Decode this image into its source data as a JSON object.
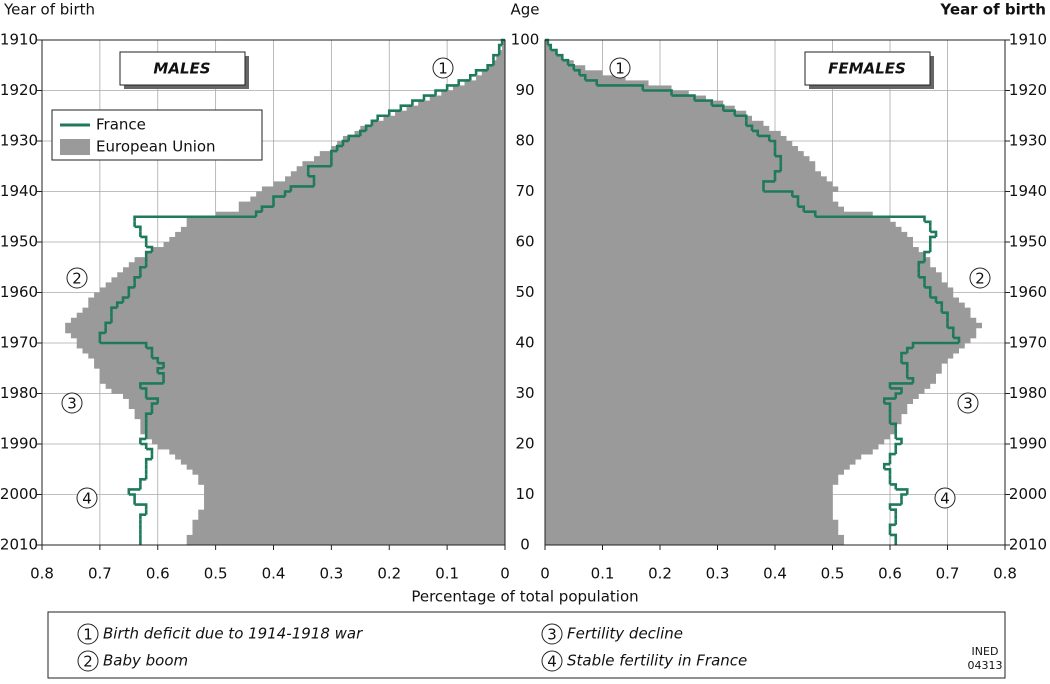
{
  "chart_data": {
    "type": "pyramid",
    "ylabel_left": "Year of birth",
    "ylabel_center": "Age",
    "ylabel_right": "Year of birth",
    "xlabel": "Percentage of total population",
    "panels": [
      "MALES",
      "FEMALES"
    ],
    "ages": [
      0,
      1,
      2,
      3,
      4,
      5,
      6,
      7,
      8,
      9,
      10,
      11,
      12,
      13,
      14,
      15,
      16,
      17,
      18,
      19,
      20,
      21,
      22,
      23,
      24,
      25,
      26,
      27,
      28,
      29,
      30,
      31,
      32,
      33,
      34,
      35,
      36,
      37,
      38,
      39,
      40,
      41,
      42,
      43,
      44,
      45,
      46,
      47,
      48,
      49,
      50,
      51,
      52,
      53,
      54,
      55,
      56,
      57,
      58,
      59,
      60,
      61,
      62,
      63,
      64,
      65,
      66,
      67,
      68,
      69,
      70,
      71,
      72,
      73,
      74,
      75,
      76,
      77,
      78,
      79,
      80,
      81,
      82,
      83,
      84,
      85,
      86,
      87,
      88,
      89,
      90,
      91,
      92,
      93,
      94,
      95,
      96,
      97,
      98,
      99,
      100
    ],
    "series": [
      {
        "name": "France",
        "color": "#1f7a5c",
        "males": [
          0.63,
          0.63,
          0.63,
          0.63,
          0.63,
          0.63,
          0.62,
          0.62,
          0.64,
          0.64,
          0.65,
          0.63,
          0.63,
          0.62,
          0.62,
          0.62,
          0.62,
          0.61,
          0.61,
          0.62,
          0.63,
          0.62,
          0.62,
          0.62,
          0.62,
          0.62,
          0.61,
          0.61,
          0.6,
          0.62,
          0.62,
          0.63,
          0.59,
          0.59,
          0.6,
          0.59,
          0.6,
          0.61,
          0.61,
          0.62,
          0.7,
          0.7,
          0.69,
          0.69,
          0.68,
          0.68,
          0.68,
          0.67,
          0.66,
          0.65,
          0.65,
          0.64,
          0.64,
          0.63,
          0.63,
          0.62,
          0.62,
          0.62,
          0.61,
          0.62,
          0.62,
          0.63,
          0.63,
          0.64,
          0.64,
          0.43,
          0.42,
          0.4,
          0.4,
          0.38,
          0.37,
          0.33,
          0.33,
          0.34,
          0.34,
          0.3,
          0.3,
          0.3,
          0.29,
          0.28,
          0.27,
          0.25,
          0.24,
          0.23,
          0.22,
          0.2,
          0.18,
          0.16,
          0.14,
          0.12,
          0.1,
          0.08,
          0.06,
          0.05,
          0.03,
          0.02,
          0.02,
          0.01,
          0.01,
          0.005,
          0
        ],
        "females": [
          0.61,
          0.61,
          0.6,
          0.6,
          0.61,
          0.61,
          0.61,
          0.6,
          0.62,
          0.62,
          0.63,
          0.61,
          0.6,
          0.6,
          0.6,
          0.59,
          0.6,
          0.6,
          0.61,
          0.61,
          0.62,
          0.61,
          0.61,
          0.61,
          0.6,
          0.6,
          0.6,
          0.6,
          0.59,
          0.61,
          0.62,
          0.6,
          0.64,
          0.63,
          0.63,
          0.63,
          0.62,
          0.62,
          0.63,
          0.64,
          0.72,
          0.71,
          0.71,
          0.7,
          0.7,
          0.7,
          0.69,
          0.69,
          0.68,
          0.67,
          0.67,
          0.66,
          0.66,
          0.65,
          0.65,
          0.65,
          0.66,
          0.66,
          0.67,
          0.67,
          0.67,
          0.68,
          0.67,
          0.67,
          0.66,
          0.47,
          0.45,
          0.44,
          0.44,
          0.43,
          0.38,
          0.38,
          0.4,
          0.4,
          0.41,
          0.41,
          0.41,
          0.4,
          0.4,
          0.4,
          0.39,
          0.37,
          0.36,
          0.35,
          0.35,
          0.33,
          0.31,
          0.29,
          0.26,
          0.22,
          0.17,
          0.09,
          0.07,
          0.06,
          0.05,
          0.04,
          0.03,
          0.02,
          0.01,
          0.005,
          0
        ]
      },
      {
        "name": "European Union",
        "color": "#9a9a9b",
        "males": [
          0.55,
          0.55,
          0.54,
          0.54,
          0.54,
          0.53,
          0.53,
          0.52,
          0.52,
          0.52,
          0.52,
          0.52,
          0.53,
          0.53,
          0.54,
          0.55,
          0.56,
          0.57,
          0.58,
          0.6,
          0.61,
          0.62,
          0.63,
          0.63,
          0.63,
          0.64,
          0.64,
          0.65,
          0.65,
          0.66,
          0.68,
          0.69,
          0.7,
          0.7,
          0.7,
          0.71,
          0.71,
          0.72,
          0.73,
          0.74,
          0.74,
          0.75,
          0.76,
          0.76,
          0.75,
          0.74,
          0.73,
          0.72,
          0.72,
          0.71,
          0.7,
          0.69,
          0.68,
          0.67,
          0.66,
          0.65,
          0.64,
          0.62,
          0.61,
          0.59,
          0.58,
          0.57,
          0.56,
          0.55,
          0.55,
          0.5,
          0.46,
          0.46,
          0.44,
          0.43,
          0.42,
          0.4,
          0.38,
          0.37,
          0.36,
          0.35,
          0.33,
          0.32,
          0.3,
          0.29,
          0.28,
          0.26,
          0.25,
          0.23,
          0.21,
          0.19,
          0.17,
          0.15,
          0.13,
          0.11,
          0.09,
          0.07,
          0.05,
          0.04,
          0.03,
          0.02,
          0.015,
          0.01,
          0.005,
          0.003,
          0
        ],
        "females": [
          0.52,
          0.52,
          0.51,
          0.51,
          0.51,
          0.5,
          0.5,
          0.5,
          0.5,
          0.5,
          0.5,
          0.5,
          0.51,
          0.51,
          0.52,
          0.53,
          0.54,
          0.55,
          0.57,
          0.58,
          0.59,
          0.6,
          0.61,
          0.61,
          0.62,
          0.62,
          0.63,
          0.63,
          0.64,
          0.65,
          0.66,
          0.67,
          0.68,
          0.68,
          0.69,
          0.69,
          0.7,
          0.71,
          0.72,
          0.73,
          0.74,
          0.75,
          0.75,
          0.76,
          0.75,
          0.74,
          0.74,
          0.73,
          0.72,
          0.71,
          0.71,
          0.7,
          0.69,
          0.69,
          0.68,
          0.67,
          0.67,
          0.66,
          0.65,
          0.64,
          0.64,
          0.63,
          0.62,
          0.61,
          0.6,
          0.57,
          0.52,
          0.51,
          0.5,
          0.5,
          0.51,
          0.5,
          0.49,
          0.48,
          0.47,
          0.47,
          0.46,
          0.45,
          0.44,
          0.43,
          0.42,
          0.41,
          0.39,
          0.38,
          0.36,
          0.35,
          0.33,
          0.31,
          0.28,
          0.25,
          0.22,
          0.18,
          0.14,
          0.1,
          0.07,
          0.05,
          0.03,
          0.02,
          0.01,
          0.005,
          0
        ]
      }
    ],
    "xlim": [
      0,
      0.8
    ],
    "xticks": [
      0,
      0.1,
      0.2,
      0.3,
      0.4,
      0.5,
      0.6,
      0.7,
      0.8
    ],
    "ylim": [
      0,
      100
    ],
    "yticks": [
      0,
      10,
      20,
      30,
      40,
      50,
      60,
      70,
      80,
      90,
      100
    ],
    "y2lim": [
      2010,
      1910
    ],
    "y2ticks": [
      1910,
      1920,
      1930,
      1940,
      1950,
      1960,
      1970,
      1980,
      1990,
      2000,
      2010
    ],
    "grid": true,
    "annotations": [
      {
        "marker": "1",
        "text": "Birth deficit due to 1914-1918 war"
      },
      {
        "marker": "2",
        "text": "Baby boom"
      },
      {
        "marker": "3",
        "text": "Fertility decline"
      },
      {
        "marker": "4",
        "text": "Stable fertility in France"
      }
    ],
    "credit": [
      "INED",
      "04313"
    ]
  }
}
